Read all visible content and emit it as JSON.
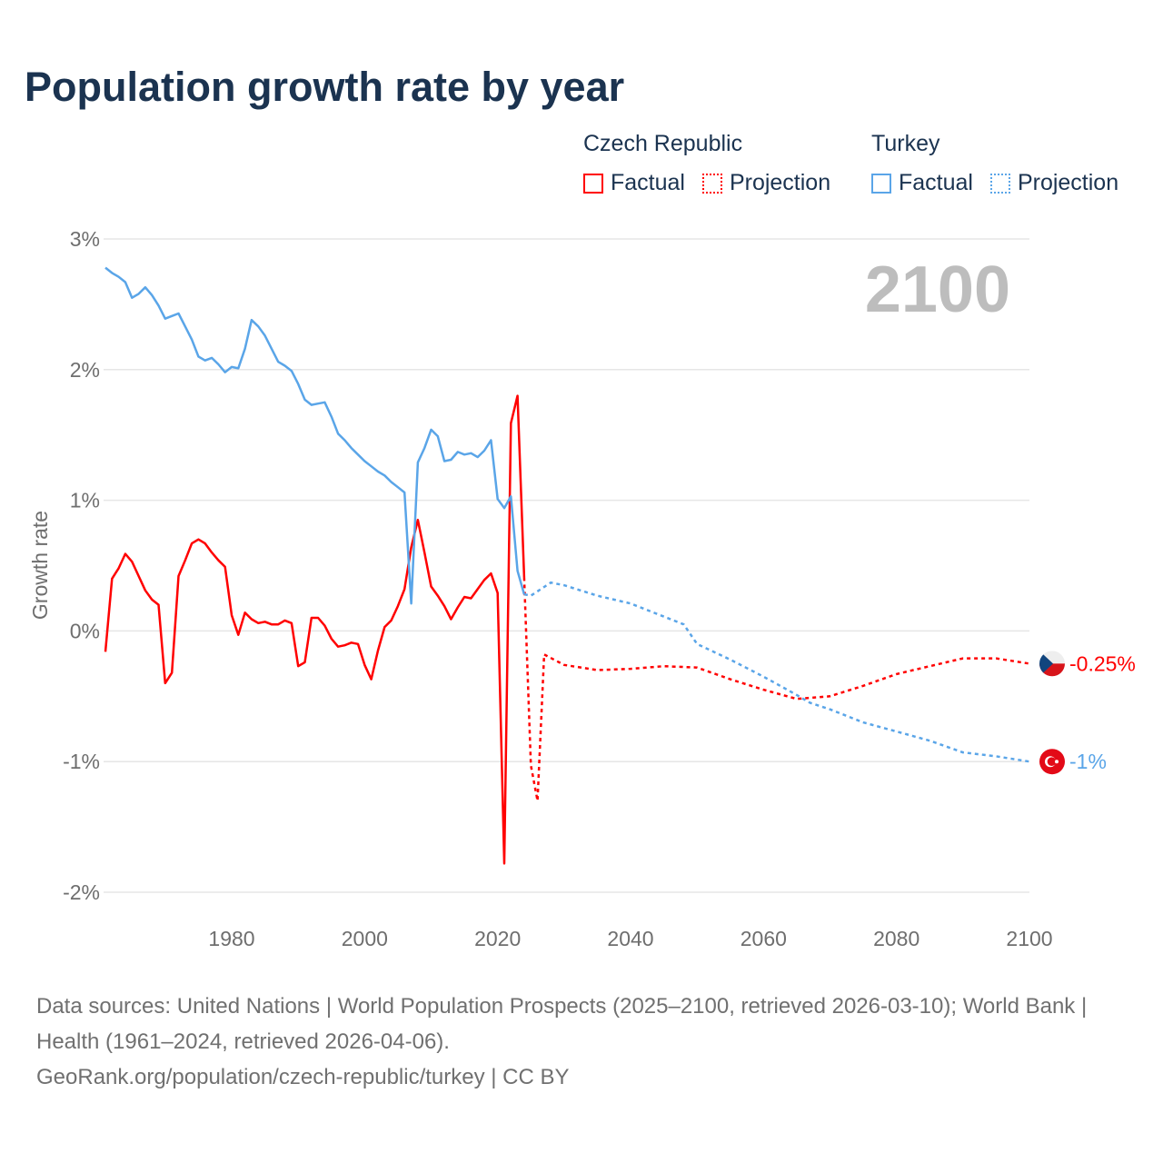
{
  "title": "Population growth rate by year",
  "legend": {
    "groups": [
      {
        "name": "Czech Republic",
        "color": "#ff0000",
        "factual_label": "Factual",
        "projection_label": "Projection"
      },
      {
        "name": "Turkey",
        "color": "#5aa5e8",
        "factual_label": "Factual",
        "projection_label": "Projection"
      }
    ]
  },
  "current_year_label": "2100",
  "sources": {
    "line1": "Data sources: United Nations | World Population Prospects (2025–2100, retrieved 2026-03-10); World Bank | Health (1961–2024, retrieved 2026-04-06).",
    "line2": "GeoRank.org/population/czech-republic/turkey | CC BY"
  },
  "chart_data": {
    "type": "line",
    "title": "Population growth rate by year",
    "xlabel": "",
    "ylabel": "Growth rate",
    "xlim": [
      1961,
      2100
    ],
    "ylim": [
      -2,
      3
    ],
    "x_ticks": [
      1980,
      2000,
      2020,
      2040,
      2060,
      2080,
      2100
    ],
    "x_tick_labels": [
      "1980",
      "2000",
      "2020",
      "2040",
      "2060",
      "2080",
      "2100"
    ],
    "y_ticks": [
      3,
      2,
      1,
      0,
      -1,
      -2
    ],
    "y_tick_labels": [
      "3%",
      "2%",
      "1%",
      "0%",
      "-1%",
      "-2%"
    ],
    "grid": true,
    "legend_position": "top-right",
    "series": [
      {
        "name": "Czech Republic",
        "color": "#ff0000",
        "end_label": "-0.25%",
        "flag": "czech-flag",
        "factual": {
          "x": [
            1961,
            1962,
            1963,
            1964,
            1965,
            1966,
            1967,
            1968,
            1969,
            1970,
            1971,
            1972,
            1973,
            1974,
            1975,
            1976,
            1977,
            1978,
            1979,
            1980,
            1981,
            1982,
            1983,
            1984,
            1985,
            1986,
            1987,
            1988,
            1989,
            1990,
            1991,
            1992,
            1993,
            1994,
            1995,
            1996,
            1997,
            1998,
            1999,
            2000,
            2001,
            2002,
            2003,
            2004,
            2005,
            2006,
            2007,
            2008,
            2009,
            2010,
            2011,
            2012,
            2013,
            2014,
            2015,
            2016,
            2017,
            2018,
            2019,
            2020,
            2021,
            2022,
            2023,
            2024
          ],
          "y": [
            -0.16,
            0.4,
            0.48,
            0.59,
            0.53,
            0.42,
            0.31,
            0.24,
            0.2,
            -0.4,
            -0.32,
            0.42,
            0.54,
            0.67,
            0.7,
            0.67,
            0.6,
            0.54,
            0.49,
            0.12,
            -0.03,
            0.14,
            0.09,
            0.06,
            0.07,
            0.05,
            0.05,
            0.08,
            0.06,
            -0.27,
            -0.24,
            0.1,
            0.1,
            0.04,
            -0.06,
            -0.12,
            -0.11,
            -0.09,
            -0.1,
            -0.26,
            -0.37,
            -0.15,
            0.03,
            0.08,
            0.19,
            0.32,
            0.64,
            0.85,
            0.6,
            0.34,
            0.27,
            0.19,
            0.09,
            0.18,
            0.26,
            0.25,
            0.32,
            0.39,
            0.44,
            0.29,
            -1.78,
            1.59,
            1.8,
            0.41
          ]
        },
        "projection": {
          "x": [
            2024,
            2025,
            2026,
            2027,
            2030,
            2035,
            2040,
            2045,
            2050,
            2055,
            2060,
            2065,
            2070,
            2075,
            2080,
            2085,
            2090,
            2095,
            2100
          ],
          "y": [
            0.41,
            -1.03,
            -1.3,
            -0.18,
            -0.26,
            -0.3,
            -0.29,
            -0.27,
            -0.28,
            -0.37,
            -0.45,
            -0.52,
            -0.5,
            -0.42,
            -0.33,
            -0.27,
            -0.21,
            -0.21,
            -0.25
          ]
        }
      },
      {
        "name": "Turkey",
        "color": "#5aa5e8",
        "end_label": "-1%",
        "flag": "turkey-flag",
        "factual": {
          "x": [
            1961,
            1962,
            1963,
            1964,
            1965,
            1966,
            1967,
            1968,
            1969,
            1970,
            1971,
            1972,
            1973,
            1974,
            1975,
            1976,
            1977,
            1978,
            1979,
            1980,
            1981,
            1982,
            1983,
            1984,
            1985,
            1986,
            1987,
            1988,
            1989,
            1990,
            1991,
            1992,
            1993,
            1994,
            1995,
            1996,
            1997,
            1998,
            1999,
            2000,
            2001,
            2002,
            2003,
            2004,
            2005,
            2006,
            2007,
            2008,
            2009,
            2010,
            2011,
            2012,
            2013,
            2014,
            2015,
            2016,
            2017,
            2018,
            2019,
            2020,
            2021,
            2022,
            2023,
            2024
          ],
          "y": [
            2.78,
            2.74,
            2.71,
            2.67,
            2.55,
            2.58,
            2.63,
            2.57,
            2.49,
            2.39,
            2.41,
            2.43,
            2.33,
            2.23,
            2.1,
            2.07,
            2.09,
            2.04,
            1.98,
            2.02,
            2.01,
            2.16,
            2.38,
            2.33,
            2.26,
            2.16,
            2.06,
            2.03,
            1.99,
            1.89,
            1.77,
            1.73,
            1.74,
            1.75,
            1.64,
            1.51,
            1.46,
            1.4,
            1.35,
            1.3,
            1.26,
            1.22,
            1.19,
            1.14,
            1.1,
            1.06,
            0.21,
            1.29,
            1.4,
            1.54,
            1.49,
            1.3,
            1.31,
            1.37,
            1.35,
            1.36,
            1.33,
            1.38,
            1.46,
            1.01,
            0.94,
            1.03,
            0.46,
            0.28
          ]
        },
        "projection": {
          "x": [
            2024,
            2025,
            2028,
            2030,
            2035,
            2040,
            2045,
            2048,
            2050,
            2055,
            2060,
            2065,
            2067,
            2070,
            2075,
            2080,
            2085,
            2090,
            2095,
            2100
          ],
          "y": [
            0.28,
            0.27,
            0.37,
            0.35,
            0.27,
            0.21,
            0.11,
            0.05,
            -0.1,
            -0.22,
            -0.35,
            -0.49,
            -0.55,
            -0.6,
            -0.7,
            -0.77,
            -0.84,
            -0.93,
            -0.96,
            -1.0
          ]
        }
      }
    ]
  }
}
